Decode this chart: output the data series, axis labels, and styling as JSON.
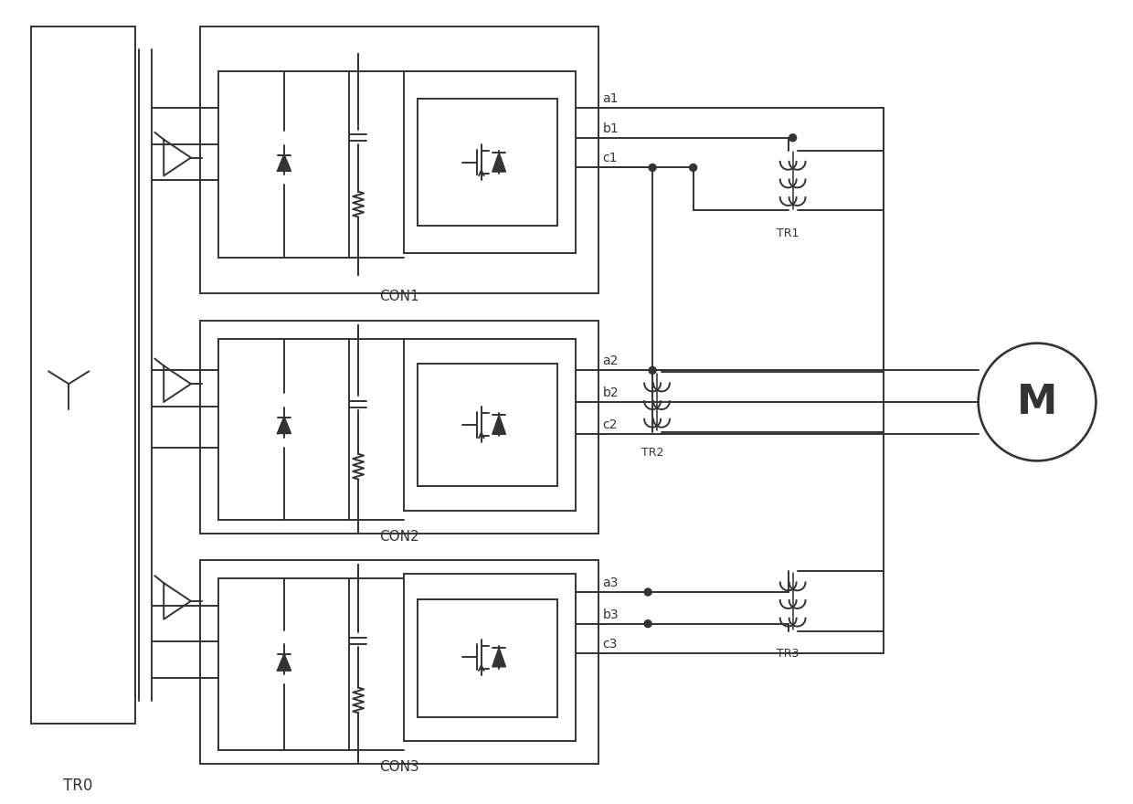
{
  "bg_color": "#ffffff",
  "lc": "#333333",
  "lw": 1.4,
  "fig_w": 12.4,
  "fig_h": 8.8,
  "labels": {
    "TR0": "TR0",
    "TR1": "TR1",
    "TR2": "TR2",
    "TR3": "TR3",
    "CON1": "CON1",
    "CON2": "CON2",
    "CON3": "CON3",
    "M": "M",
    "a1": "a1",
    "b1": "b1",
    "c1": "c1",
    "a2": "a2",
    "b2": "b2",
    "c2": "c2",
    "a3": "a3",
    "b3": "b3",
    "c3": "c3"
  }
}
